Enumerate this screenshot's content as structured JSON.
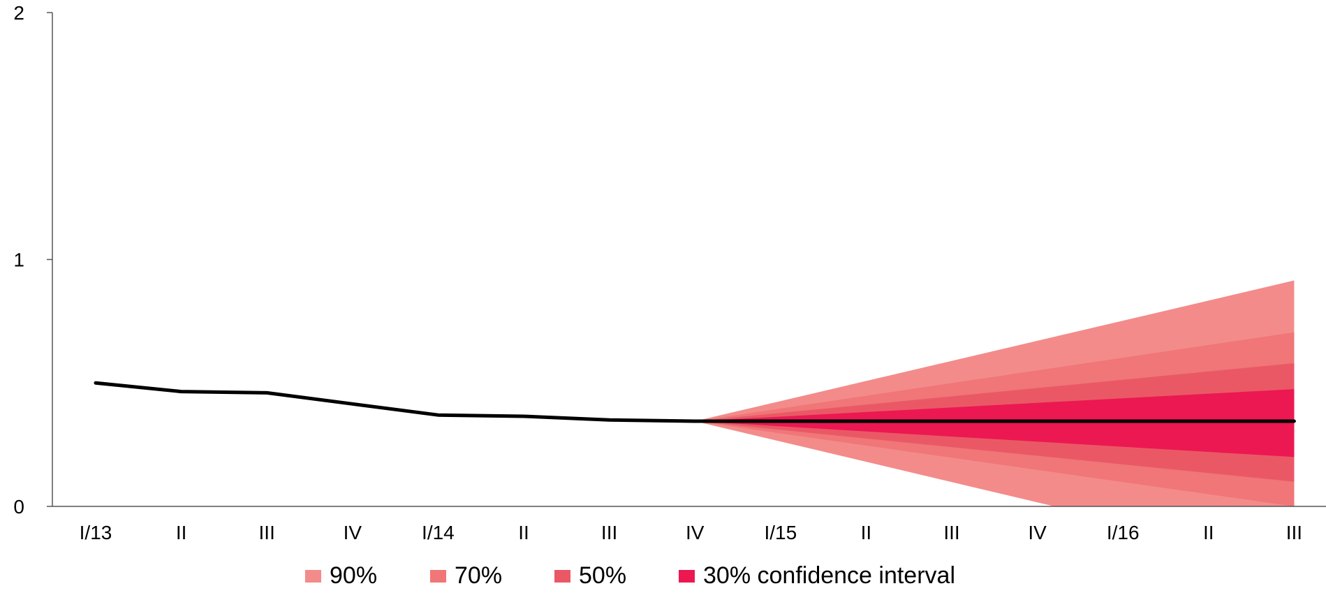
{
  "chart_data": {
    "type": "area",
    "title": "",
    "xlabel": "",
    "ylabel": "",
    "categories": [
      "I/13",
      "II",
      "III",
      "IV",
      "I/14",
      "II",
      "III",
      "IV",
      "I/15",
      "II",
      "III",
      "IV",
      "I/16",
      "II",
      "III"
    ],
    "y_ticks": [
      "0",
      "1",
      "2"
    ],
    "ylim": [
      0,
      2
    ],
    "grid": false,
    "legend_position": "bottom",
    "series": [
      {
        "values": [
          0.5,
          0.465,
          0.46,
          0.415,
          0.37,
          0.365,
          0.35,
          0.345,
          0.345,
          0.345,
          0.345,
          0.345,
          0.345,
          0.345,
          0.345
        ],
        "color": "#000000"
      }
    ],
    "fan": {
      "start_index": 7,
      "start_value": 0.345,
      "bands": [
        {
          "label": "90%",
          "color": "#F38B8A",
          "end_upper": 0.915,
          "end_lower": -0.23
        },
        {
          "label": "70%",
          "color": "#F07678",
          "end_upper": 0.705,
          "end_lower": 0.0
        },
        {
          "label": "50%",
          "color": "#EA5866",
          "end_upper": 0.58,
          "end_lower": 0.1
        },
        {
          "label": "30% confidence interval",
          "color": "#EC1852",
          "end_upper": 0.475,
          "end_lower": 0.2
        }
      ]
    }
  }
}
